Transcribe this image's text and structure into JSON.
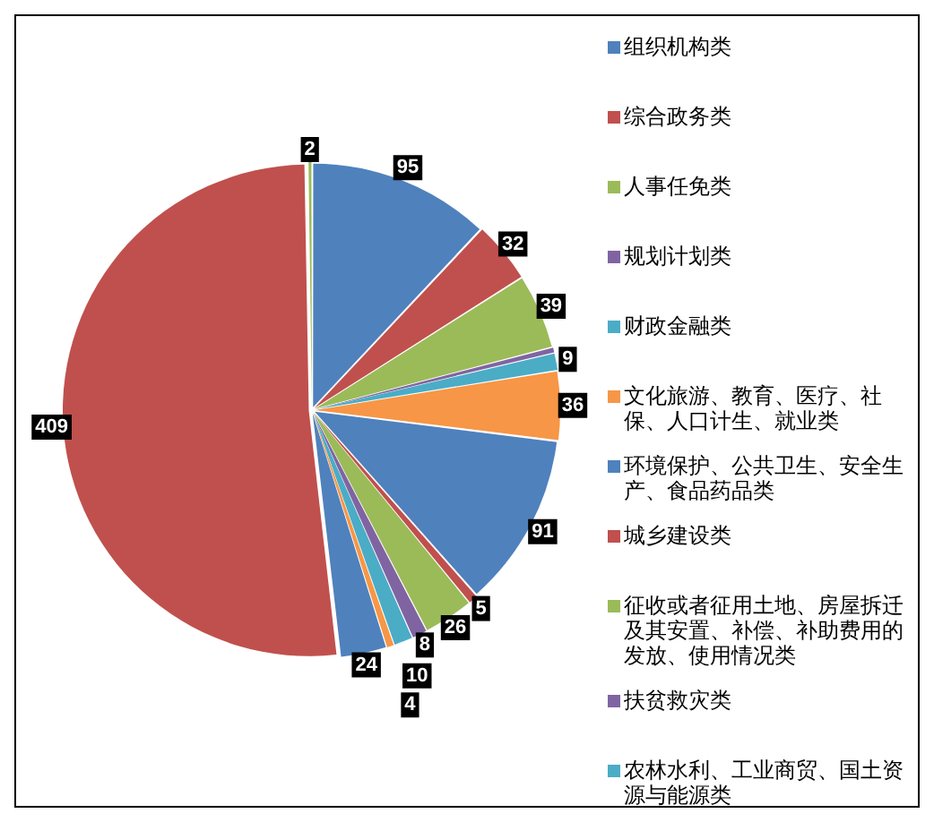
{
  "chart_data": {
    "type": "pie",
    "categories": [
      "组织机构类",
      "综合政务类",
      "人事任免类",
      "规划计划类",
      "财政金融类",
      "文化旅游、教育、医疗、社保、人口计生、就业类",
      "环境保护、公共卫生、安全生产、食品药品类",
      "城乡建设类",
      "征收或者征用土地、房屋拆迁及其安置、补偿、补助费用的发放、使用情况类",
      "扶贫救灾类",
      "农林水利、工业商贸、国土资源与能源类",
      null,
      null,
      null,
      null
    ],
    "values": [
      95,
      32,
      39,
      3,
      9,
      36,
      91,
      5,
      26,
      8,
      10,
      4,
      24,
      409,
      2
    ],
    "colors": [
      "#4f81bd",
      "#c0504d",
      "#9bbb59",
      "#8064a2",
      "#4bacc6",
      "#f79646",
      "#4f81bd",
      "#c0504d",
      "#9bbb59",
      "#8064a2",
      "#4bacc6",
      "#f79646",
      "#4f81bd",
      "#c0504d",
      "#9bbb59"
    ],
    "value_labels": [
      "95",
      "32",
      "39",
      null,
      "9",
      "36",
      "91",
      "5",
      "26",
      "8",
      "10",
      "4",
      "24",
      "409",
      "2"
    ],
    "legend": "right"
  }
}
